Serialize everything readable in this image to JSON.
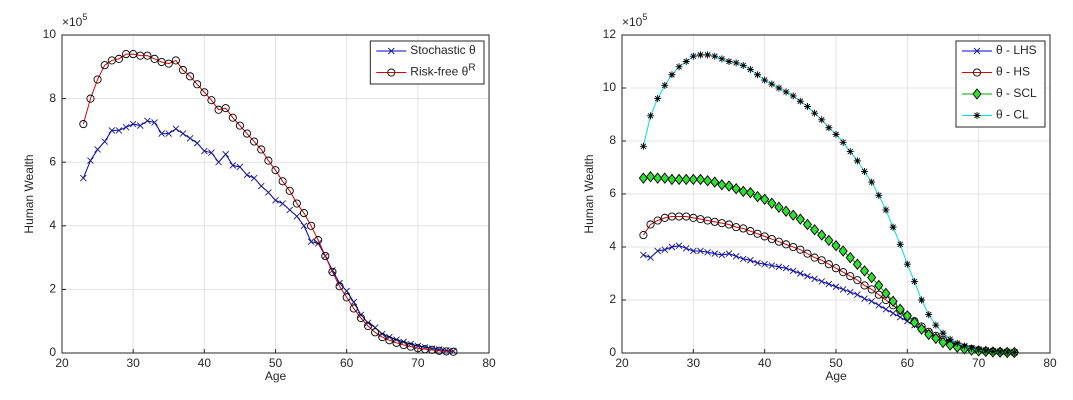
{
  "chart_data": [
    {
      "type": "line",
      "xlabel": "Age",
      "ylabel": "Human Wealth",
      "y_multiplier": {
        "base": "×10",
        "power": "5"
      },
      "xlim": [
        20,
        80
      ],
      "xticks": [
        20,
        30,
        40,
        50,
        60,
        70,
        80
      ],
      "ylim": [
        0,
        10
      ],
      "yticks": [
        0,
        2,
        4,
        6,
        8,
        10
      ],
      "grid": true,
      "legend": "northeast",
      "x": [
        23,
        24,
        25,
        26,
        27,
        28,
        29,
        30,
        31,
        32,
        33,
        34,
        35,
        36,
        37,
        38,
        39,
        40,
        41,
        42,
        43,
        44,
        45,
        46,
        47,
        48,
        49,
        50,
        51,
        52,
        53,
        54,
        55,
        56,
        57,
        58,
        59,
        60,
        61,
        62,
        63,
        64,
        65,
        66,
        67,
        68,
        69,
        70,
        71,
        72,
        73,
        74,
        75
      ],
      "series": [
        {
          "name": "Stochastic   θ",
          "color": "#0000cc",
          "marker": "x",
          "marker_color": "#1a1a80",
          "marker_fill": "none",
          "values": [
            5.5,
            6.05,
            6.4,
            6.65,
            7.0,
            7.0,
            7.1,
            7.2,
            7.15,
            7.3,
            7.25,
            6.9,
            6.9,
            7.05,
            6.9,
            6.75,
            6.6,
            6.35,
            6.3,
            6.0,
            6.25,
            5.9,
            5.85,
            5.6,
            5.5,
            5.25,
            5.05,
            4.8,
            4.7,
            4.5,
            4.3,
            4.0,
            3.5,
            3.45,
            3.05,
            2.6,
            2.2,
            1.95,
            1.6,
            1.2,
            0.95,
            0.8,
            0.6,
            0.5,
            0.42,
            0.35,
            0.28,
            0.22,
            0.18,
            0.14,
            0.11,
            0.08,
            0.06
          ]
        },
        {
          "name": "Risk-free   θ",
          "name_sup": "R",
          "color": "#dd0000",
          "marker": "o",
          "marker_color": "#000000",
          "marker_fill": "none",
          "values": [
            7.2,
            8.0,
            8.6,
            9.05,
            9.2,
            9.25,
            9.4,
            9.4,
            9.35,
            9.35,
            9.25,
            9.15,
            9.1,
            9.2,
            8.9,
            8.7,
            8.45,
            8.2,
            7.95,
            7.65,
            7.7,
            7.4,
            7.15,
            6.9,
            6.65,
            6.4,
            6.05,
            5.75,
            5.4,
            5.1,
            4.7,
            4.4,
            4.0,
            3.55,
            3.05,
            2.55,
            2.1,
            1.75,
            1.4,
            1.1,
            0.85,
            0.65,
            0.5,
            0.4,
            0.32,
            0.25,
            0.2,
            0.15,
            0.12,
            0.1,
            0.07,
            0.05,
            0.04
          ]
        }
      ]
    },
    {
      "type": "line",
      "xlabel": "Age",
      "ylabel": "Human Wealth",
      "y_multiplier": {
        "base": "×10",
        "power": "5"
      },
      "xlim": [
        20,
        80
      ],
      "xticks": [
        20,
        30,
        40,
        50,
        60,
        70,
        80
      ],
      "ylim": [
        0,
        12
      ],
      "yticks": [
        0,
        2,
        4,
        6,
        8,
        10,
        12
      ],
      "grid": true,
      "legend": "northeast",
      "x": [
        23,
        24,
        25,
        26,
        27,
        28,
        29,
        30,
        31,
        32,
        33,
        34,
        35,
        36,
        37,
        38,
        39,
        40,
        41,
        42,
        43,
        44,
        45,
        46,
        47,
        48,
        49,
        50,
        51,
        52,
        53,
        54,
        55,
        56,
        57,
        58,
        59,
        60,
        61,
        62,
        63,
        64,
        65,
        66,
        67,
        68,
        69,
        70,
        71,
        72,
        73,
        74,
        75
      ],
      "series": [
        {
          "name": "θ - LHS",
          "color": "#0000cc",
          "marker": "x",
          "marker_color": "#1a1a80",
          "marker_fill": "none",
          "values": [
            3.7,
            3.6,
            3.85,
            3.9,
            4.0,
            4.05,
            3.95,
            3.85,
            3.85,
            3.8,
            3.75,
            3.7,
            3.75,
            3.65,
            3.55,
            3.5,
            3.4,
            3.35,
            3.3,
            3.25,
            3.2,
            3.1,
            3.0,
            2.9,
            2.8,
            2.7,
            2.6,
            2.5,
            2.4,
            2.3,
            2.2,
            2.05,
            1.95,
            1.8,
            1.65,
            1.5,
            1.35,
            1.2,
            1.05,
            0.9,
            0.75,
            0.6,
            0.5,
            0.4,
            0.3,
            0.25,
            0.18,
            0.13,
            0.1,
            0.07,
            0.05,
            0.04,
            0.03
          ]
        },
        {
          "name": "θ - HS",
          "color": "#dd0000",
          "marker": "o",
          "marker_color": "#000000",
          "marker_fill": "none",
          "values": [
            4.45,
            4.85,
            5.0,
            5.1,
            5.15,
            5.15,
            5.15,
            5.1,
            5.05,
            5.0,
            4.95,
            4.9,
            4.85,
            4.75,
            4.7,
            4.6,
            4.5,
            4.4,
            4.3,
            4.2,
            4.1,
            4.0,
            3.9,
            3.75,
            3.6,
            3.5,
            3.35,
            3.2,
            3.05,
            2.9,
            2.75,
            2.55,
            2.4,
            2.2,
            2.0,
            1.8,
            1.6,
            1.4,
            1.2,
            1.0,
            0.8,
            0.65,
            0.5,
            0.38,
            0.28,
            0.2,
            0.15,
            0.1,
            0.07,
            0.05,
            0.04,
            0.03,
            0.02
          ]
        },
        {
          "name": "θ - SCL",
          "color": "#00aa00",
          "marker": "d",
          "marker_color": "#000000",
          "marker_fill": "#33dd33",
          "values": [
            6.6,
            6.65,
            6.6,
            6.6,
            6.55,
            6.55,
            6.55,
            6.55,
            6.55,
            6.5,
            6.45,
            6.35,
            6.3,
            6.2,
            6.1,
            6.05,
            5.9,
            5.8,
            5.65,
            5.5,
            5.35,
            5.2,
            5.05,
            4.85,
            4.65,
            4.45,
            4.25,
            4.05,
            3.85,
            3.6,
            3.35,
            3.1,
            2.85,
            2.55,
            2.25,
            1.95,
            1.65,
            1.4,
            1.15,
            0.9,
            0.7,
            0.55,
            0.4,
            0.3,
            0.22,
            0.16,
            0.11,
            0.08,
            0.06,
            0.04,
            0.03,
            0.02,
            0.02
          ]
        },
        {
          "name": "θ - CL",
          "color": "#00dddd",
          "marker": "*",
          "marker_color": "#000000",
          "marker_fill": "none",
          "values": [
            7.8,
            8.95,
            9.6,
            10.1,
            10.5,
            10.8,
            11.0,
            11.2,
            11.25,
            11.25,
            11.2,
            11.1,
            11.0,
            10.95,
            10.85,
            10.7,
            10.5,
            10.3,
            10.15,
            10.0,
            9.85,
            9.7,
            9.5,
            9.3,
            9.05,
            8.8,
            8.5,
            8.25,
            7.95,
            7.6,
            7.25,
            6.85,
            6.45,
            5.95,
            5.4,
            4.75,
            4.1,
            3.35,
            2.7,
            2.0,
            1.45,
            1.05,
            0.75,
            0.52,
            0.37,
            0.26,
            0.18,
            0.12,
            0.08,
            0.06,
            0.04,
            0.03,
            0.02
          ]
        }
      ]
    }
  ]
}
